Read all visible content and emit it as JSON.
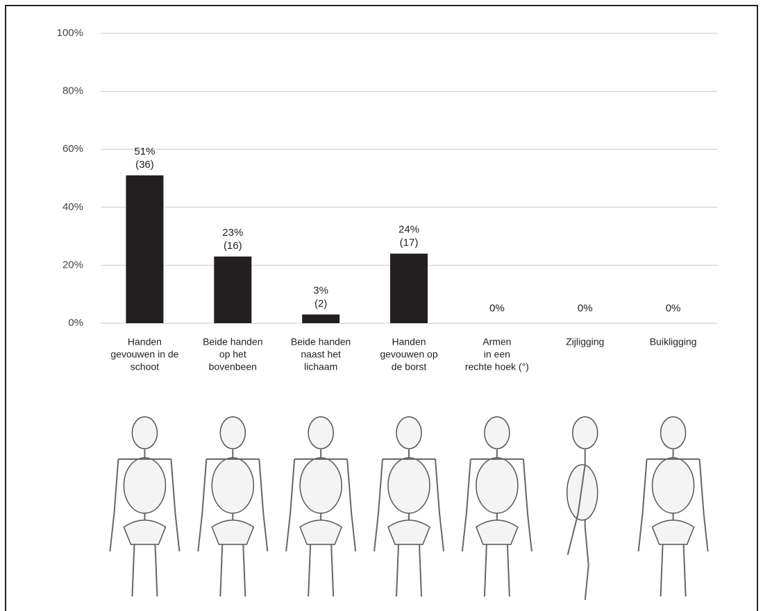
{
  "chart_data": {
    "type": "bar",
    "categories": [
      [
        "Handen",
        "gevouwen in de",
        "schoot"
      ],
      [
        "Beide handen",
        "op het",
        "bovenbeen"
      ],
      [
        "Beide handen",
        "naast het",
        "lichaam"
      ],
      [
        "Handen",
        "gevouwen op",
        "de borst"
      ],
      [
        "Armen",
        "in een",
        "rechte hoek (°)"
      ],
      [
        "Zijligging"
      ],
      [
        "Buikligging"
      ]
    ],
    "values": [
      51,
      23,
      3,
      24,
      0,
      0,
      0
    ],
    "value_labels": [
      "51%",
      "23%",
      "3%",
      "24%",
      "0%",
      "0%",
      "0%"
    ],
    "count_labels": [
      "(36)",
      "(16)",
      "(2)",
      "(17)",
      null,
      null,
      null
    ],
    "color": "#231f20",
    "ylim": [
      0,
      100
    ],
    "yticks": [
      {
        "value": 0,
        "label": "0%"
      },
      {
        "value": 20,
        "label": "20%"
      },
      {
        "value": 40,
        "label": "40%"
      },
      {
        "value": 60,
        "label": "60%"
      },
      {
        "value": 80,
        "label": "80%"
      },
      {
        "value": 100,
        "label": "100%"
      }
    ],
    "grid": true
  }
}
